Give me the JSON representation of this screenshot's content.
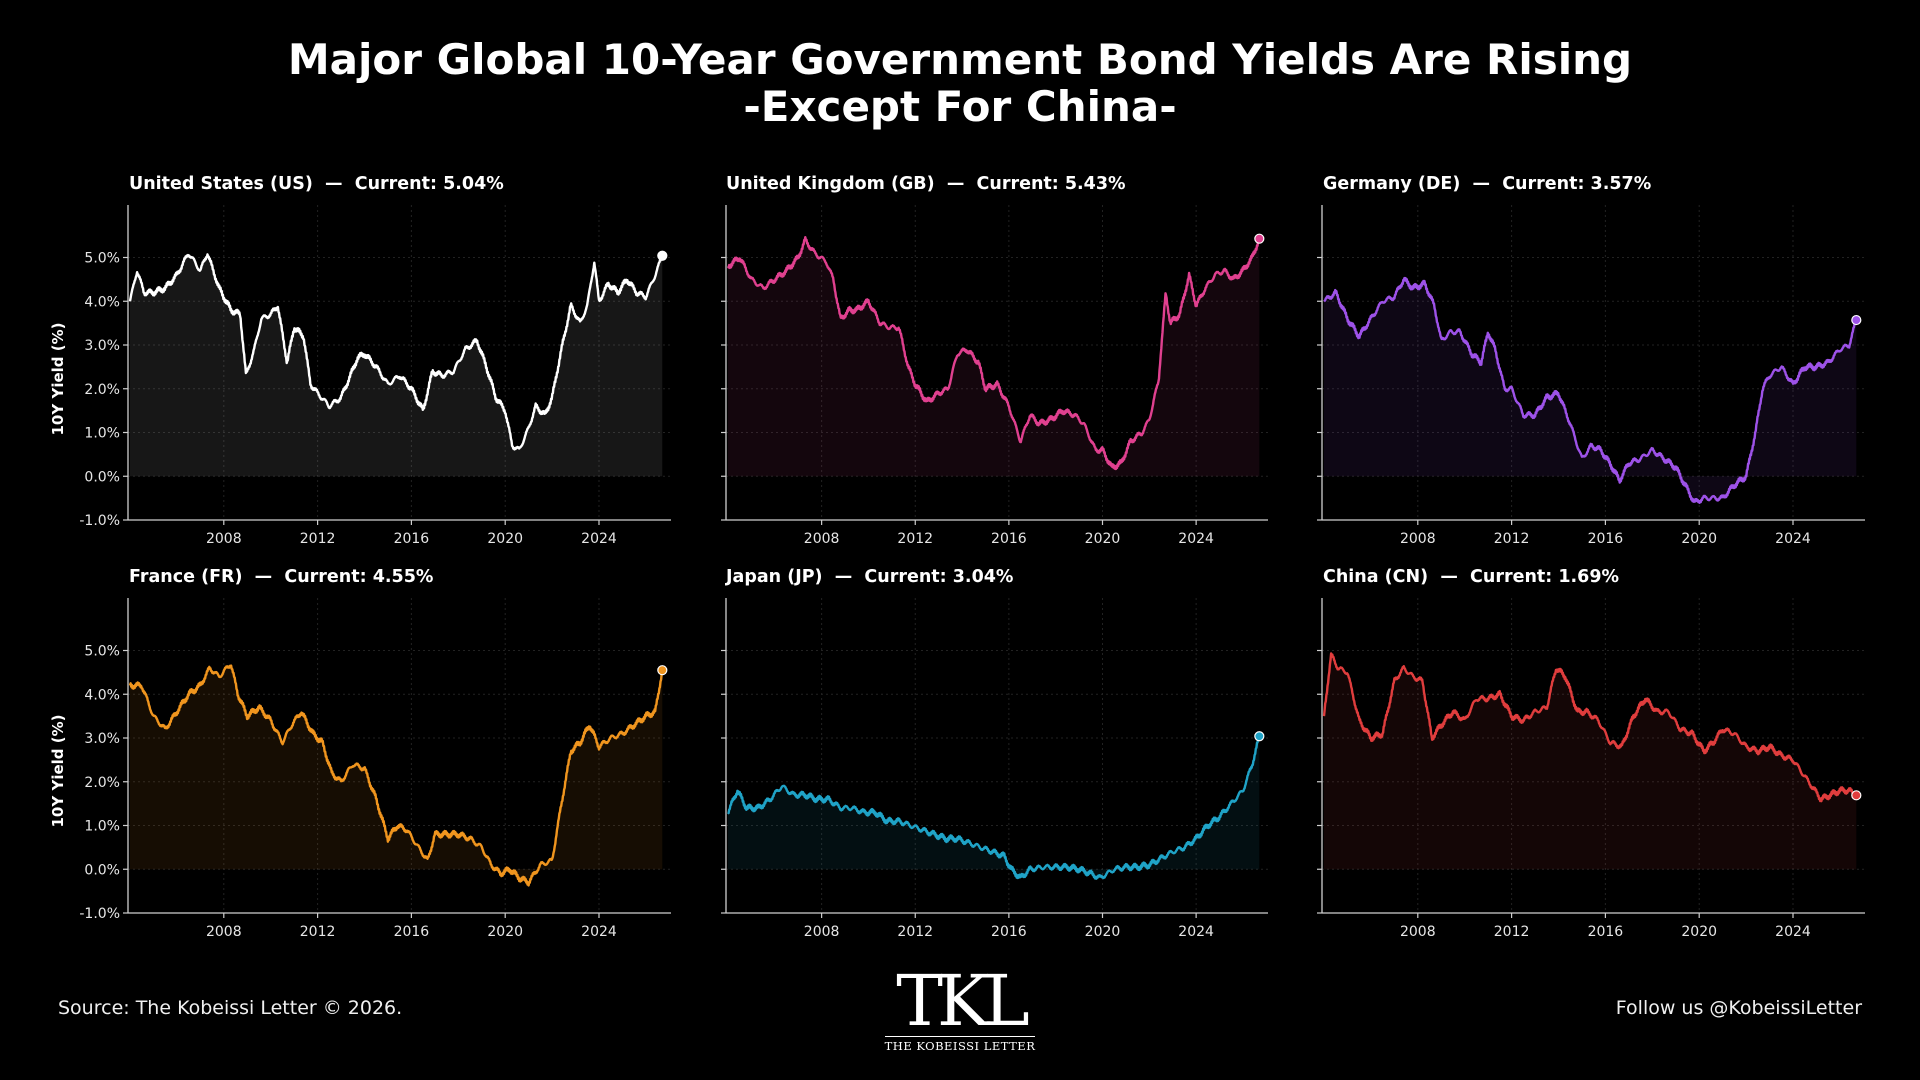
{
  "title_line1": "Major Global 10-Year Government Bond Yields Are Rising",
  "title_line2": "-Except For China-",
  "y_axis_label": "10Y Yield (%)",
  "footer": {
    "source": "Source: The Kobeissi Letter © 2026.",
    "follow": "Follow us @KobeissiLetter",
    "logo_mark": "TKL",
    "logo_text": "THE KOBEISSI LETTER"
  },
  "chart_data": [
    {
      "type": "line",
      "title": "United States (US)  —  Current: 5.04%",
      "color": "#ffffff",
      "ylabel": "10Y Yield (%)",
      "ylim": [
        -1,
        6.2
      ],
      "xlim": [
        2004.0,
        2026.9
      ],
      "yticks": [
        "-1.0%",
        "0.0%",
        "1.0%",
        "2.0%",
        "3.0%",
        "4.0%",
        "5.0%"
      ],
      "xticks": [
        "2008",
        "2012",
        "2016",
        "2020",
        "2024"
      ],
      "grid": true,
      "x": [
        2004.0,
        2004.3,
        2004.6,
        2005.0,
        2005.5,
        2006.0,
        2006.5,
        2007.0,
        2007.3,
        2007.8,
        2008.3,
        2008.7,
        2008.95,
        2009.3,
        2009.6,
        2010.0,
        2010.3,
        2010.7,
        2011.0,
        2011.4,
        2011.7,
        2012.0,
        2012.5,
        2013.0,
        2013.4,
        2013.7,
        2014.0,
        2014.5,
        2015.0,
        2015.5,
        2016.0,
        2016.5,
        2016.9,
        2017.3,
        2017.8,
        2018.3,
        2018.8,
        2019.2,
        2019.6,
        2020.0,
        2020.3,
        2020.6,
        2021.0,
        2021.3,
        2021.7,
        2022.0,
        2022.4,
        2022.8,
        2023.2,
        2023.5,
        2023.8,
        2024.0,
        2024.4,
        2024.8,
        2025.2,
        2025.6,
        2026.0,
        2026.4,
        2026.7
      ],
      "y": [
        4.0,
        4.7,
        4.2,
        4.2,
        4.3,
        4.6,
        5.1,
        4.7,
        5.1,
        4.3,
        3.8,
        3.7,
        2.3,
        2.9,
        3.6,
        3.7,
        3.9,
        2.6,
        3.4,
        3.2,
        2.1,
        1.9,
        1.6,
        1.8,
        2.3,
        2.7,
        2.8,
        2.5,
        2.1,
        2.3,
        2.0,
        1.5,
        2.4,
        2.3,
        2.4,
        2.9,
        3.1,
        2.5,
        1.8,
        1.5,
        0.7,
        0.6,
        1.1,
        1.6,
        1.4,
        1.8,
        2.9,
        3.9,
        3.5,
        3.9,
        4.9,
        4.0,
        4.4,
        4.2,
        4.5,
        4.2,
        4.1,
        4.6,
        5.04
      ],
      "current": 5.04
    },
    {
      "type": "line",
      "title": "United Kingdom (GB)  —  Current: 5.43%",
      "color": "#e0408f",
      "ylim": [
        -1,
        6.2
      ],
      "xlim": [
        2004.0,
        2026.9
      ],
      "xticks": [
        "2008",
        "2012",
        "2016",
        "2020",
        "2024"
      ],
      "grid": true,
      "x": [
        2004.0,
        2004.5,
        2005.0,
        2005.5,
        2006.0,
        2006.5,
        2007.0,
        2007.3,
        2007.7,
        2008.2,
        2008.5,
        2008.8,
        2009.2,
        2009.5,
        2010.0,
        2010.5,
        2010.9,
        2011.3,
        2011.7,
        2012.0,
        2012.5,
        2013.0,
        2013.4,
        2013.8,
        2014.2,
        2014.7,
        2015.0,
        2015.5,
        2016.0,
        2016.5,
        2016.9,
        2017.3,
        2017.8,
        2018.3,
        2018.8,
        2019.2,
        2019.7,
        2020.0,
        2020.4,
        2020.8,
        2021.2,
        2021.7,
        2022.0,
        2022.4,
        2022.7,
        2022.9,
        2023.3,
        2023.7,
        2024.0,
        2024.4,
        2024.8,
        2025.2,
        2025.6,
        2026.0,
        2026.4,
        2026.7
      ],
      "y": [
        4.8,
        5.0,
        4.5,
        4.3,
        4.5,
        4.7,
        5.0,
        5.4,
        5.1,
        4.9,
        4.5,
        3.6,
        3.8,
        3.8,
        4.0,
        3.5,
        3.4,
        3.4,
        2.5,
        2.1,
        1.7,
        1.9,
        2.0,
        2.8,
        2.9,
        2.6,
        2.0,
        2.1,
        1.6,
        0.8,
        1.4,
        1.2,
        1.3,
        1.5,
        1.4,
        1.2,
        0.6,
        0.6,
        0.2,
        0.3,
        0.8,
        1.0,
        1.3,
        2.2,
        4.2,
        3.5,
        3.7,
        4.6,
        3.9,
        4.3,
        4.6,
        4.7,
        4.5,
        4.7,
        5.0,
        5.43
      ],
      "current": 5.43
    },
    {
      "type": "line",
      "title": "Germany (DE)  —  Current: 3.57%",
      "color": "#9d52e8",
      "ylim": [
        -1,
        6.2
      ],
      "xlim": [
        2004.0,
        2026.9
      ],
      "xticks": [
        "2008",
        "2012",
        "2016",
        "2020",
        "2024"
      ],
      "grid": true,
      "x": [
        2004.0,
        2004.5,
        2005.0,
        2005.5,
        2006.0,
        2006.5,
        2007.0,
        2007.4,
        2007.8,
        2008.3,
        2008.7,
        2009.0,
        2009.4,
        2009.8,
        2010.3,
        2010.7,
        2011.0,
        2011.3,
        2011.7,
        2012.0,
        2012.5,
        2013.0,
        2013.5,
        2014.0,
        2014.5,
        2015.0,
        2015.4,
        2015.8,
        2016.3,
        2016.6,
        2017.0,
        2017.5,
        2018.0,
        2018.5,
        2019.0,
        2019.5,
        2019.8,
        2020.2,
        2020.6,
        2021.0,
        2021.5,
        2022.0,
        2022.4,
        2022.7,
        2023.0,
        2023.5,
        2024.0,
        2024.5,
        2025.0,
        2025.5,
        2026.0,
        2026.4,
        2026.7
      ],
      "y": [
        4.0,
        4.2,
        3.6,
        3.2,
        3.6,
        4.0,
        4.1,
        4.5,
        4.3,
        4.4,
        3.9,
        3.1,
        3.3,
        3.3,
        2.8,
        2.6,
        3.3,
        2.9,
        2.0,
        2.0,
        1.4,
        1.4,
        1.8,
        1.9,
        1.2,
        0.4,
        0.7,
        0.6,
        0.2,
        -0.1,
        0.3,
        0.4,
        0.6,
        0.4,
        0.2,
        -0.3,
        -0.6,
        -0.5,
        -0.5,
        -0.5,
        -0.2,
        0.0,
        1.0,
        2.0,
        2.3,
        2.5,
        2.1,
        2.5,
        2.5,
        2.6,
        2.9,
        3.0,
        3.57
      ],
      "current": 3.57
    },
    {
      "type": "line",
      "title": "France (FR)  —  Current: 4.55%",
      "color": "#f0951e",
      "ylabel": "10Y Yield (%)",
      "ylim": [
        -1,
        6.2
      ],
      "xlim": [
        2004.0,
        2026.9
      ],
      "yticks": [
        "-1.0%",
        "0.0%",
        "1.0%",
        "2.0%",
        "3.0%",
        "4.0%",
        "5.0%"
      ],
      "xticks": [
        "2008",
        "2012",
        "2016",
        "2020",
        "2024"
      ],
      "grid": true,
      "x": [
        2004.0,
        2004.5,
        2005.0,
        2005.5,
        2006.0,
        2006.5,
        2007.0,
        2007.4,
        2007.8,
        2008.3,
        2008.6,
        2009.0,
        2009.5,
        2010.0,
        2010.5,
        2010.9,
        2011.3,
        2011.8,
        2012.2,
        2012.6,
        2013.0,
        2013.5,
        2014.0,
        2014.5,
        2015.0,
        2015.4,
        2015.8,
        2016.3,
        2016.7,
        2017.0,
        2017.5,
        2018.0,
        2018.5,
        2019.0,
        2019.4,
        2019.8,
        2020.2,
        2020.6,
        2021.0,
        2021.5,
        2022.0,
        2022.4,
        2022.8,
        2023.2,
        2023.6,
        2024.0,
        2024.5,
        2025.0,
        2025.5,
        2026.0,
        2026.4,
        2026.7
      ],
      "y": [
        4.2,
        4.2,
        3.5,
        3.2,
        3.6,
        4.0,
        4.2,
        4.6,
        4.4,
        4.7,
        4.0,
        3.5,
        3.7,
        3.4,
        2.9,
        3.3,
        3.6,
        3.1,
        2.9,
        2.2,
        2.0,
        2.4,
        2.3,
        1.6,
        0.7,
        1.0,
        0.9,
        0.5,
        0.2,
        0.8,
        0.8,
        0.8,
        0.7,
        0.5,
        0.1,
        -0.1,
        0.0,
        -0.2,
        -0.3,
        0.1,
        0.2,
        1.5,
        2.7,
        2.9,
        3.3,
        2.8,
        3.0,
        3.1,
        3.3,
        3.5,
        3.6,
        4.55
      ],
      "current": 4.55
    },
    {
      "type": "line",
      "title": "Japan (JP)  —  Current: 3.04%",
      "color": "#1fa3c7",
      "ylim": [
        -1,
        6.2
      ],
      "xlim": [
        2004.0,
        2026.9
      ],
      "xticks": [
        "2008",
        "2012",
        "2016",
        "2020",
        "2024"
      ],
      "grid": true,
      "x": [
        2004.0,
        2004.4,
        2004.8,
        2005.3,
        2005.8,
        2006.3,
        2006.8,
        2007.3,
        2007.8,
        2008.3,
        2008.8,
        2009.3,
        2009.8,
        2010.3,
        2010.8,
        2011.3,
        2011.8,
        2012.3,
        2012.8,
        2013.3,
        2013.8,
        2014.3,
        2014.8,
        2015.3,
        2015.8,
        2016.1,
        2016.5,
        2016.9,
        2017.5,
        2018.0,
        2018.5,
        2019.0,
        2019.5,
        2019.9,
        2020.5,
        2021.0,
        2021.5,
        2022.0,
        2022.5,
        2023.0,
        2023.5,
        2024.0,
        2024.5,
        2025.0,
        2025.5,
        2026.0,
        2026.4,
        2026.7
      ],
      "y": [
        1.3,
        1.8,
        1.4,
        1.4,
        1.6,
        1.9,
        1.7,
        1.7,
        1.6,
        1.6,
        1.4,
        1.4,
        1.3,
        1.3,
        1.1,
        1.1,
        1.0,
        0.9,
        0.8,
        0.7,
        0.7,
        0.6,
        0.5,
        0.4,
        0.3,
        0.0,
        -0.2,
        0.0,
        0.05,
        0.05,
        0.05,
        0.0,
        -0.1,
        -0.2,
        0.0,
        0.05,
        0.05,
        0.1,
        0.25,
        0.4,
        0.5,
        0.7,
        1.0,
        1.2,
        1.5,
        1.8,
        2.4,
        3.04
      ],
      "current": 3.04
    },
    {
      "type": "line",
      "title": "China (CN)  —  Current: 1.69%",
      "color": "#e03d3d",
      "ylim": [
        -1,
        6.2
      ],
      "xlim": [
        2004.0,
        2026.9
      ],
      "xticks": [
        "2008",
        "2012",
        "2016",
        "2020",
        "2024"
      ],
      "grid": true,
      "x": [
        2004.0,
        2004.3,
        2004.6,
        2005.0,
        2005.5,
        2006.0,
        2006.5,
        2007.0,
        2007.4,
        2007.8,
        2008.2,
        2008.6,
        2009.0,
        2009.5,
        2010.0,
        2010.5,
        2011.0,
        2011.5,
        2012.0,
        2012.5,
        2013.0,
        2013.5,
        2013.9,
        2014.3,
        2014.8,
        2015.2,
        2015.7,
        2016.2,
        2016.7,
        2017.2,
        2017.7,
        2018.2,
        2018.7,
        2019.2,
        2019.7,
        2020.2,
        2020.6,
        2021.0,
        2021.5,
        2022.0,
        2022.5,
        2023.0,
        2023.5,
        2024.0,
        2024.4,
        2024.8,
        2025.2,
        2025.6,
        2026.0,
        2026.4,
        2026.7
      ],
      "y": [
        3.5,
        4.9,
        4.6,
        4.5,
        3.4,
        3.0,
        3.1,
        4.3,
        4.6,
        4.4,
        4.3,
        3.0,
        3.3,
        3.6,
        3.4,
        3.9,
        3.9,
        4.0,
        3.5,
        3.4,
        3.6,
        3.7,
        4.6,
        4.4,
        3.6,
        3.6,
        3.4,
        2.9,
        2.8,
        3.5,
        3.9,
        3.6,
        3.6,
        3.2,
        3.1,
        2.7,
        2.9,
        3.2,
        3.1,
        2.8,
        2.7,
        2.8,
        2.6,
        2.5,
        2.2,
        1.9,
        1.6,
        1.7,
        1.8,
        1.8,
        1.69
      ],
      "current": 1.69
    }
  ]
}
